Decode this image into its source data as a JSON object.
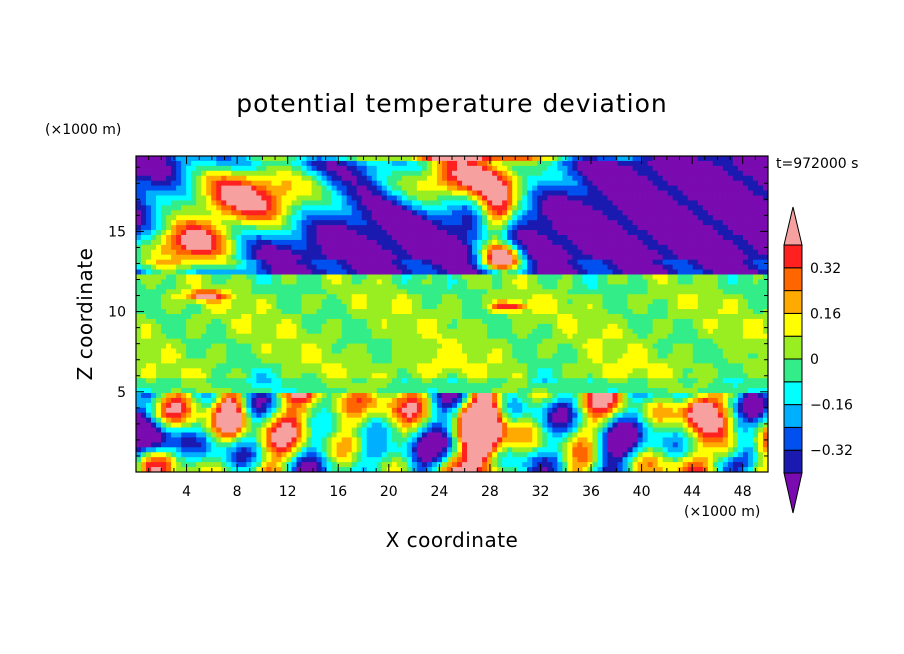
{
  "chart_data": {
    "type": "heatmap",
    "title": "potential temperature deviation",
    "xlabel": "X coordinate",
    "ylabel": "Z coordinate",
    "x_unit": "(×1000 m)",
    "y_unit": "(×1000 m)",
    "time_label": "t=972000 s",
    "xlim": [
      0,
      50
    ],
    "ylim": [
      0,
      19.7
    ],
    "x_ticks": [
      4,
      8,
      12,
      16,
      20,
      24,
      28,
      32,
      36,
      40,
      44,
      48
    ],
    "y_ticks": [
      5,
      10,
      15
    ],
    "colorbar": {
      "levels": [
        -0.4,
        -0.32,
        -0.24,
        -0.16,
        -0.08,
        0,
        0.08,
        0.16,
        0.24,
        0.32,
        0.4
      ],
      "labels": [
        {
          "value": 0.32,
          "text": "0.32"
        },
        {
          "value": 0.16,
          "text": "0.16"
        },
        {
          "value": 0,
          "text": "0"
        },
        {
          "value": -0.16,
          "text": "−0.16"
        },
        {
          "value": -0.32,
          "text": "−0.32"
        }
      ],
      "colors": [
        "#7a0bb0",
        "#1a1ab0",
        "#0050f0",
        "#00b0ff",
        "#00ffff",
        "#33ee88",
        "#99ee22",
        "#ffff00",
        "#ffaa00",
        "#ff6600",
        "#ff2020",
        "#f7a0a0"
      ],
      "extend": "both"
    }
  }
}
